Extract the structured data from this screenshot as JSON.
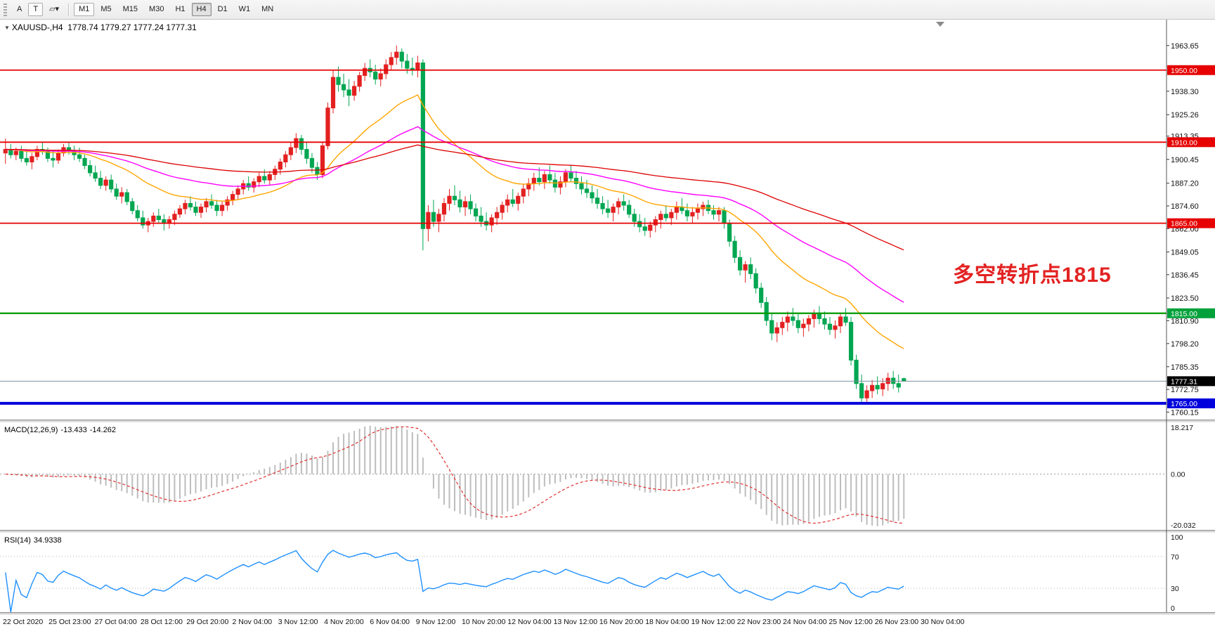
{
  "toolbar": {
    "tool_a": "A",
    "tool_t": "T",
    "icons": {
      "shape": "▱",
      "dropdown": "▾"
    },
    "timeframes": [
      "M1",
      "M5",
      "M15",
      "M30",
      "H1",
      "H4",
      "D1",
      "W1",
      "MN"
    ],
    "active_timeframe": "H4",
    "raised_timeframe": "M1"
  },
  "chart_title": {
    "collapse_icon": "▼",
    "symbol": "XAUUSD-,H4",
    "ohlc": "1778.74 1779.27 1777.24 1777.31"
  },
  "annotation": {
    "text": "多空转折点1815",
    "color": "#e32222"
  },
  "chart_data": {
    "type": "candlestick",
    "symbol": "XAUUSD",
    "timeframe": "H4",
    "price_range": [
      1756,
      1978
    ],
    "current_price": 1777.31,
    "colors": {
      "bull": "#e32020",
      "bear": "#00a651",
      "background": "#ffffff",
      "macd_hist": "#bdbdbd",
      "macd_signal": "#e03131",
      "rsi_line": "#1e90ff",
      "axis_text": "#111111"
    },
    "moving_averages": [
      {
        "period": 25,
        "color": "#ffa500",
        "width": 1.4,
        "name": "ma-fast-orange"
      },
      {
        "period": 55,
        "color": "#ff00ff",
        "width": 1.4,
        "name": "ma-mid-magenta"
      },
      {
        "period": 120,
        "color": "#dd0000",
        "width": 1.3,
        "name": "ma-slow-red"
      }
    ],
    "levels": [
      {
        "price": 1950.0,
        "color": "#e60000",
        "width": 1.8
      },
      {
        "price": 1910.0,
        "color": "#e60000",
        "width": 1.8
      },
      {
        "price": 1865.0,
        "color": "#e60000",
        "width": 1.8
      },
      {
        "price": 1815.0,
        "color": "#009a00",
        "width": 2.2
      },
      {
        "price": 1765.0,
        "color": "#0000dd",
        "width": 4
      },
      {
        "price": 1777.31,
        "color": "#7d8f9c",
        "width": 1
      }
    ],
    "price_tags": [
      {
        "price": 1950.0,
        "label": "1950.00",
        "bg": "#e60000"
      },
      {
        "price": 1910.0,
        "label": "1910.00",
        "bg": "#e60000"
      },
      {
        "price": 1865.0,
        "label": "1865.00",
        "bg": "#e60000"
      },
      {
        "price": 1815.0,
        "label": "1815.00",
        "bg": "#00a13a"
      },
      {
        "price": 1777.31,
        "label": "1777.31",
        "bg": "#000000"
      },
      {
        "price": 1765.0,
        "label": "1765.00",
        "bg": "#0000dd"
      }
    ],
    "axis_price_labels": [
      1963.65,
      1938.3,
      1925.26,
      1913.35,
      1900.45,
      1887.2,
      1874.6,
      1862.0,
      1849.05,
      1836.45,
      1823.5,
      1810.9,
      1798.2,
      1785.35,
      1772.75,
      1760.15
    ],
    "time_labels": [
      "22 Oct 2020",
      "25 Oct 23:00",
      "27 Oct 04:00",
      "28 Oct 12:00",
      "29 Oct 20:00",
      "2 Nov 04:00",
      "3 Nov 12:00",
      "4 Nov 20:00",
      "6 Nov 04:00",
      "9 Nov 12:00",
      "10 Nov 20:00",
      "12 Nov 04:00",
      "13 Nov 12:00",
      "16 Nov 20:00",
      "18 Nov 04:00",
      "19 Nov 12:00",
      "22 Nov 23:00",
      "24 Nov 04:00",
      "25 Nov 12:00",
      "26 Nov 23:00",
      "30 Nov 04:00"
    ],
    "candles": [
      [
        1904,
        1912,
        1898,
        1906
      ],
      [
        1906,
        1909,
        1901,
        1903
      ],
      [
        1903,
        1907,
        1900,
        1905
      ],
      [
        1905,
        1908,
        1899,
        1901
      ],
      [
        1901,
        1906,
        1897,
        1899
      ],
      [
        1899,
        1904,
        1895,
        1902
      ],
      [
        1902,
        1908,
        1900,
        1906
      ],
      [
        1906,
        1910,
        1903,
        1905
      ],
      [
        1905,
        1907,
        1899,
        1901
      ],
      [
        1901,
        1905,
        1896,
        1900
      ],
      [
        1900,
        1906,
        1898,
        1904
      ],
      [
        1904,
        1909,
        1902,
        1907
      ],
      [
        1907,
        1910,
        1903,
        1905
      ],
      [
        1905,
        1908,
        1900,
        1903
      ],
      [
        1903,
        1907,
        1899,
        1901
      ],
      [
        1901,
        1903,
        1895,
        1897
      ],
      [
        1897,
        1900,
        1891,
        1893
      ],
      [
        1893,
        1897,
        1888,
        1890
      ],
      [
        1890,
        1894,
        1884,
        1886
      ],
      [
        1886,
        1891,
        1883,
        1889
      ],
      [
        1889,
        1892,
        1882,
        1884
      ],
      [
        1884,
        1887,
        1878,
        1880
      ],
      [
        1880,
        1885,
        1876,
        1882
      ],
      [
        1882,
        1884,
        1875,
        1877
      ],
      [
        1877,
        1879,
        1870,
        1872
      ],
      [
        1872,
        1875,
        1866,
        1868
      ],
      [
        1868,
        1872,
        1862,
        1864
      ],
      [
        1864,
        1868,
        1860,
        1866
      ],
      [
        1866,
        1871,
        1863,
        1869
      ],
      [
        1869,
        1873,
        1865,
        1867
      ],
      [
        1867,
        1870,
        1861,
        1865
      ],
      [
        1865,
        1869,
        1862,
        1867
      ],
      [
        1867,
        1872,
        1864,
        1870
      ],
      [
        1870,
        1875,
        1868,
        1873
      ],
      [
        1873,
        1878,
        1870,
        1876
      ],
      [
        1876,
        1880,
        1872,
        1874
      ],
      [
        1874,
        1877,
        1869,
        1871
      ],
      [
        1871,
        1876,
        1868,
        1874
      ],
      [
        1874,
        1879,
        1871,
        1877
      ],
      [
        1877,
        1881,
        1873,
        1875
      ],
      [
        1875,
        1878,
        1869,
        1872
      ],
      [
        1872,
        1877,
        1869,
        1875
      ],
      [
        1875,
        1880,
        1872,
        1878
      ],
      [
        1878,
        1883,
        1875,
        1881
      ],
      [
        1881,
        1886,
        1878,
        1884
      ],
      [
        1884,
        1889,
        1881,
        1887
      ],
      [
        1887,
        1891,
        1883,
        1885
      ],
      [
        1885,
        1890,
        1882,
        1888
      ],
      [
        1888,
        1893,
        1885,
        1891
      ],
      [
        1891,
        1895,
        1887,
        1889
      ],
      [
        1889,
        1894,
        1886,
        1892
      ],
      [
        1892,
        1897,
        1889,
        1895
      ],
      [
        1895,
        1901,
        1892,
        1899
      ],
      [
        1899,
        1905,
        1896,
        1903
      ],
      [
        1903,
        1910,
        1900,
        1907
      ],
      [
        1907,
        1915,
        1904,
        1912
      ],
      [
        1912,
        1914,
        1903,
        1906
      ],
      [
        1906,
        1910,
        1898,
        1901
      ],
      [
        1901,
        1904,
        1893,
        1896
      ],
      [
        1896,
        1899,
        1889,
        1892
      ],
      [
        1892,
        1910,
        1890,
        1908
      ],
      [
        1908,
        1932,
        1906,
        1929
      ],
      [
        1929,
        1950,
        1926,
        1946
      ],
      [
        1946,
        1952,
        1938,
        1942
      ],
      [
        1942,
        1948,
        1935,
        1939
      ],
      [
        1939,
        1945,
        1930,
        1936
      ],
      [
        1936,
        1944,
        1933,
        1941
      ],
      [
        1941,
        1949,
        1938,
        1947
      ],
      [
        1947,
        1954,
        1944,
        1951
      ],
      [
        1951,
        1956,
        1946,
        1949
      ],
      [
        1949,
        1953,
        1942,
        1945
      ],
      [
        1945,
        1951,
        1941,
        1948
      ],
      [
        1948,
        1956,
        1945,
        1953
      ],
      [
        1953,
        1960,
        1950,
        1957
      ],
      [
        1957,
        1963.65,
        1953,
        1960
      ],
      [
        1960,
        1962,
        1951,
        1955
      ],
      [
        1955,
        1959,
        1948,
        1951
      ],
      [
        1951,
        1957,
        1947,
        1950
      ],
      [
        1950,
        1958,
        1946,
        1954
      ],
      [
        1954,
        1956,
        1850,
        1862
      ],
      [
        1862,
        1875,
        1855,
        1871
      ],
      [
        1871,
        1878,
        1863,
        1866
      ],
      [
        1866,
        1873,
        1860,
        1870
      ],
      [
        1870,
        1879,
        1866,
        1876
      ],
      [
        1876,
        1884,
        1872,
        1880
      ],
      [
        1880,
        1886,
        1875,
        1878
      ],
      [
        1878,
        1883,
        1871,
        1874
      ],
      [
        1874,
        1880,
        1869,
        1877
      ],
      [
        1877,
        1881,
        1870,
        1873
      ],
      [
        1873,
        1876,
        1866,
        1869
      ],
      [
        1869,
        1874,
        1863,
        1866
      ],
      [
        1866,
        1871,
        1861,
        1864
      ],
      [
        1864,
        1870,
        1860,
        1868
      ],
      [
        1868,
        1874,
        1864,
        1871
      ],
      [
        1871,
        1877,
        1867,
        1875
      ],
      [
        1875,
        1881,
        1871,
        1878
      ],
      [
        1878,
        1884,
        1874,
        1876
      ],
      [
        1876,
        1882,
        1872,
        1880
      ],
      [
        1880,
        1887,
        1876,
        1884
      ],
      [
        1884,
        1890,
        1880,
        1887
      ],
      [
        1887,
        1893,
        1883,
        1890
      ],
      [
        1890,
        1896,
        1886,
        1888
      ],
      [
        1888,
        1894,
        1884,
        1892
      ],
      [
        1892,
        1897,
        1887,
        1889
      ],
      [
        1889,
        1893,
        1882,
        1885
      ],
      [
        1885,
        1891,
        1881,
        1888
      ],
      [
        1888,
        1895,
        1885,
        1893
      ],
      [
        1893,
        1897,
        1888,
        1890
      ],
      [
        1890,
        1894,
        1884,
        1887
      ],
      [
        1887,
        1891,
        1881,
        1884
      ],
      [
        1884,
        1889,
        1879,
        1882
      ],
      [
        1882,
        1886,
        1876,
        1879
      ],
      [
        1879,
        1884,
        1873,
        1876
      ],
      [
        1876,
        1880,
        1870,
        1873
      ],
      [
        1873,
        1878,
        1868,
        1871
      ],
      [
        1871,
        1876,
        1866,
        1874
      ],
      [
        1874,
        1879,
        1870,
        1877
      ],
      [
        1877,
        1881,
        1872,
        1875
      ],
      [
        1875,
        1878,
        1868,
        1870
      ],
      [
        1870,
        1873,
        1863,
        1866
      ],
      [
        1866,
        1870,
        1860,
        1863
      ],
      [
        1863,
        1868,
        1858,
        1861
      ],
      [
        1861,
        1866,
        1857,
        1864
      ],
      [
        1864,
        1869,
        1860,
        1867
      ],
      [
        1867,
        1872,
        1862,
        1870
      ],
      [
        1870,
        1875,
        1866,
        1868
      ],
      [
        1868,
        1873,
        1864,
        1871
      ],
      [
        1871,
        1877,
        1867,
        1874
      ],
      [
        1874,
        1879,
        1870,
        1872
      ],
      [
        1872,
        1876,
        1866,
        1869
      ],
      [
        1869,
        1874,
        1865,
        1871
      ],
      [
        1871,
        1876,
        1867,
        1873
      ],
      [
        1873,
        1877,
        1869,
        1875
      ],
      [
        1875,
        1878,
        1870,
        1872
      ],
      [
        1872,
        1875,
        1867,
        1870
      ],
      [
        1870,
        1874,
        1866,
        1872
      ],
      [
        1872,
        1874,
        1862,
        1865
      ],
      [
        1865,
        1867,
        1852,
        1855
      ],
      [
        1855,
        1858,
        1843,
        1846
      ],
      [
        1846,
        1850,
        1836,
        1839
      ],
      [
        1839,
        1844,
        1832,
        1842
      ],
      [
        1842,
        1846,
        1834,
        1837
      ],
      [
        1837,
        1840,
        1826,
        1829
      ],
      [
        1829,
        1832,
        1818,
        1821
      ],
      [
        1821,
        1824,
        1808,
        1811
      ],
      [
        1811,
        1815,
        1800,
        1804
      ],
      [
        1804,
        1810,
        1799,
        1807
      ],
      [
        1807,
        1813,
        1803,
        1810
      ],
      [
        1810,
        1816,
        1805,
        1813
      ],
      [
        1813,
        1818,
        1808,
        1811
      ],
      [
        1811,
        1815,
        1804,
        1807
      ],
      [
        1807,
        1812,
        1802,
        1809
      ],
      [
        1809,
        1814,
        1805,
        1812
      ],
      [
        1812,
        1817,
        1807,
        1815
      ],
      [
        1815,
        1819,
        1809,
        1812
      ],
      [
        1812,
        1816,
        1806,
        1809
      ],
      [
        1809,
        1813,
        1803,
        1806
      ],
      [
        1806,
        1811,
        1801,
        1808
      ],
      [
        1808,
        1815,
        1804,
        1813
      ],
      [
        1813,
        1818,
        1808,
        1810
      ],
      [
        1810,
        1813,
        1786,
        1789
      ],
      [
        1789,
        1792,
        1773,
        1776
      ],
      [
        1776,
        1781,
        1764.65,
        1768
      ],
      [
        1768,
        1775,
        1765,
        1772
      ],
      [
        1772,
        1778,
        1768,
        1775
      ],
      [
        1775,
        1780,
        1770,
        1773
      ],
      [
        1773,
        1779,
        1769,
        1776
      ],
      [
        1776,
        1782,
        1772,
        1779
      ],
      [
        1779,
        1783,
        1773,
        1776
      ],
      [
        1776,
        1781,
        1771,
        1774
      ],
      [
        1778.74,
        1779.27,
        1777.24,
        1777.31
      ]
    ]
  },
  "macd": {
    "label": "MACD(12,26,9)",
    "value1": "-13.433",
    "value2": "-14.262",
    "axis_max": "18.217",
    "axis_zero": "0.00",
    "axis_min": "-20.032",
    "fast": 12,
    "slow": 26,
    "signal": 9
  },
  "rsi": {
    "label": "RSI(14)",
    "value": "34.9338",
    "axis": [
      "100",
      "70",
      "30",
      "0"
    ],
    "levels": [
      70,
      30
    ],
    "period": 14
  }
}
